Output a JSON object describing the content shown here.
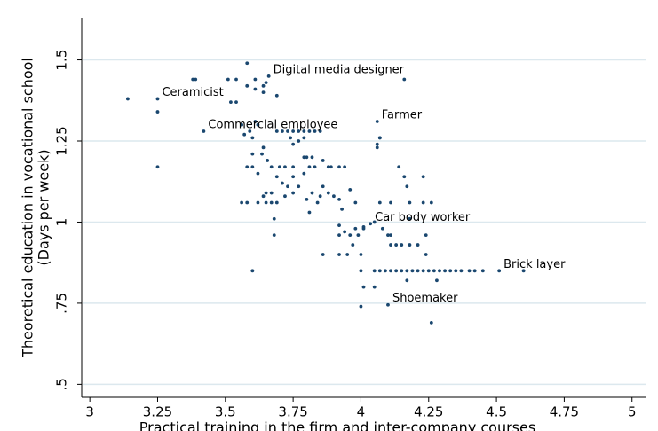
{
  "chart_data": {
    "type": "scatter",
    "xlabel": "Practical training in the firm and inter-company courses",
    "ylabel": [
      "Theoretical education in vocational school",
      "(Days per week)"
    ],
    "xlim": [
      2.97,
      5.05
    ],
    "ylim": [
      0.46,
      1.63
    ],
    "xticks": [
      3,
      3.25,
      3.5,
      3.75,
      4,
      4.25,
      4.5,
      4.75,
      5
    ],
    "yticks": [
      {
        "value": 0.5,
        "label": ".5"
      },
      {
        "value": 0.75,
        "label": ".75"
      },
      1,
      1.25,
      1.5
    ],
    "grid": true,
    "color": "#1a476f",
    "annotations": [
      {
        "text": "Digital media designer",
        "x": 3.66,
        "y": 1.45
      },
      {
        "text": "Ceramicist",
        "x": 3.25,
        "y": 1.38
      },
      {
        "text": "Commercial employee",
        "x": 3.42,
        "y": 1.28
      },
      {
        "text": "Farmer",
        "x": 4.06,
        "y": 1.31
      },
      {
        "text": "Car body worker",
        "x": 4.035,
        "y": 0.995
      },
      {
        "text": "Brick layer",
        "x": 4.51,
        "y": 0.85
      },
      {
        "text": "Shoemaker",
        "x": 4.1,
        "y": 0.745
      }
    ],
    "x": [
      3.14,
      3.25,
      3.25,
      3.25,
      3.38,
      3.39,
      3.42,
      3.51,
      3.52,
      3.54,
      3.54,
      3.58,
      3.58,
      3.61,
      3.61,
      3.64,
      3.65,
      3.66,
      3.64,
      3.69,
      4.16,
      3.56,
      3.61,
      3.62,
      3.59,
      3.57,
      3.6,
      3.69,
      3.71,
      3.73,
      3.75,
      3.77,
      3.79,
      3.81,
      3.83,
      3.85,
      3.74,
      3.75,
      3.77,
      3.79,
      3.64,
      3.635,
      3.655,
      3.6,
      3.58,
      3.6,
      3.62,
      3.67,
      3.7,
      3.72,
      3.75,
      3.79,
      3.8,
      3.81,
      3.82,
      3.83,
      3.86,
      3.88,
      3.89,
      3.92,
      3.94,
      3.79,
      3.75,
      3.71,
      3.69,
      3.73,
      3.77,
      3.67,
      3.65,
      3.64,
      3.62,
      3.58,
      3.56,
      3.65,
      3.67,
      3.69,
      3.72,
      3.75,
      3.8,
      3.81,
      3.82,
      3.84,
      3.85,
      3.86,
      3.88,
      3.9,
      3.92,
      3.93,
      3.96,
      3.98,
      3.68,
      3.68,
      3.6,
      3.92,
      3.92,
      3.94,
      3.96,
      3.98,
      3.99,
      4.01,
      4.035,
      4.01,
      4.05,
      3.92,
      3.86,
      3.95,
      3.97,
      4.0,
      4.01,
      4.05,
      4.0,
      4.07,
      4.11,
      4.06,
      4.06,
      4.07,
      4.07,
      4.06,
      4.14,
      4.16,
      4.17,
      4.18,
      4.23,
      4.23,
      4.26,
      4.18,
      4.08,
      4.1,
      4.11,
      4.11,
      4.13,
      4.15,
      4.18,
      4.21,
      4.24,
      4.1,
      4.26,
      4.28,
      4.17,
      4.24,
      4.0,
      4.05,
      4.07,
      4.09,
      4.11,
      4.13,
      4.15,
      4.17,
      4.19,
      4.21,
      4.23,
      4.25,
      4.27,
      4.29,
      4.31,
      4.33,
      4.35,
      4.37,
      4.4,
      4.42,
      4.45,
      4.51,
      4.6
    ],
    "values": [
      1.38,
      1.38,
      1.34,
      1.17,
      1.44,
      1.44,
      1.28,
      1.44,
      1.37,
      1.37,
      1.44,
      1.49,
      1.42,
      1.44,
      1.41,
      1.42,
      1.43,
      1.45,
      1.4,
      1.39,
      1.44,
      1.3,
      1.31,
      1.3,
      1.28,
      1.27,
      1.26,
      1.28,
      1.28,
      1.28,
      1.28,
      1.28,
      1.28,
      1.28,
      1.28,
      1.28,
      1.26,
      1.24,
      1.25,
      1.26,
      1.23,
      1.21,
      1.19,
      1.21,
      1.17,
      1.17,
      1.15,
      1.17,
      1.17,
      1.17,
      1.17,
      1.2,
      1.2,
      1.17,
      1.2,
      1.17,
      1.19,
      1.17,
      1.17,
      1.17,
      1.17,
      1.15,
      1.14,
      1.12,
      1.14,
      1.11,
      1.11,
      1.09,
      1.09,
      1.08,
      1.06,
      1.06,
      1.06,
      1.06,
      1.06,
      1.06,
      1.08,
      1.09,
      1.07,
      1.03,
      1.09,
      1.06,
      1.08,
      1.11,
      1.09,
      1.08,
      1.07,
      1.04,
      1.1,
      1.06,
      1.01,
      0.96,
      0.85,
      0.99,
      0.96,
      0.97,
      0.96,
      0.98,
      0.96,
      0.985,
      0.995,
      0.98,
      1.0,
      0.9,
      0.9,
      0.9,
      0.93,
      0.9,
      0.8,
      0.8,
      0.74,
      1.06,
      1.06,
      1.23,
      1.24,
      1.26,
      1.26,
      1.31,
      1.17,
      1.14,
      1.11,
      1.06,
      1.14,
      1.06,
      1.06,
      1.01,
      0.98,
      0.96,
      0.96,
      0.93,
      0.93,
      0.93,
      0.93,
      0.93,
      0.96,
      0.745,
      0.69,
      0.82,
      0.82,
      0.9,
      0.85,
      0.85,
      0.85,
      0.85,
      0.85,
      0.85,
      0.85,
      0.85,
      0.85,
      0.85,
      0.85,
      0.85,
      0.85,
      0.85,
      0.85,
      0.85,
      0.85,
      0.85,
      0.85,
      0.85,
      0.85,
      0.85,
      0.85
    ]
  }
}
